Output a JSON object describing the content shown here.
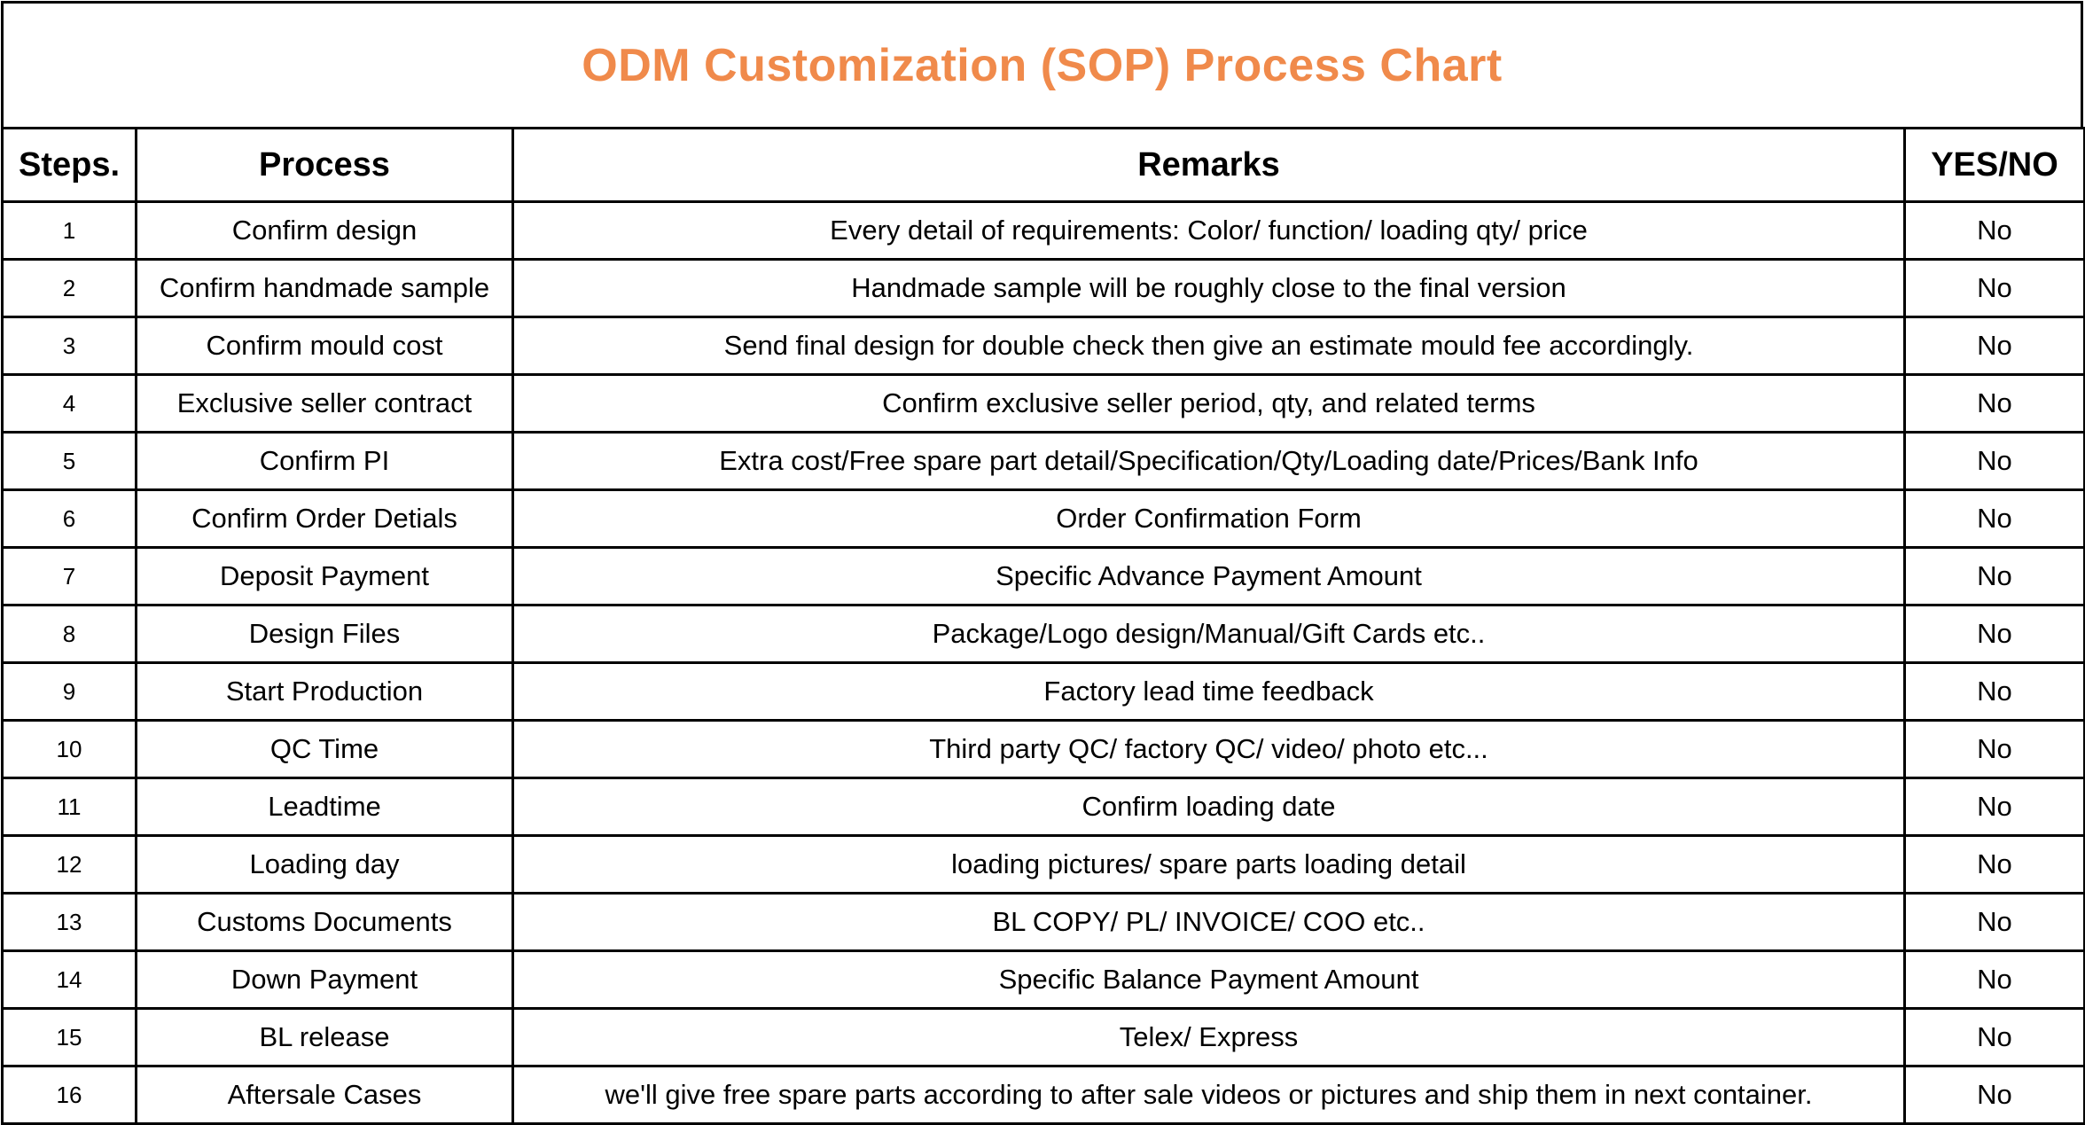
{
  "title": "ODM Customization (SOP) Process Chart",
  "accent_color": "#f08a4b",
  "headers": {
    "steps": "Steps.",
    "process": "Process",
    "remarks": "Remarks",
    "yes_no": "YES/NO"
  },
  "rows": [
    {
      "step": "1",
      "process": "Confirm design",
      "remarks": "Every detail of requirements: Color/ function/ loading qty/ price",
      "yes_no": "No"
    },
    {
      "step": "2",
      "process": "Confirm handmade sample",
      "remarks": "Handmade sample will be roughly close to the final version",
      "yes_no": "No"
    },
    {
      "step": "3",
      "process": "Confirm mould cost",
      "remarks": "Send final design for double check then give an estimate mould fee accordingly.",
      "yes_no": "No"
    },
    {
      "step": "4",
      "process": "Exclusive seller contract",
      "remarks": "Confirm exclusive seller period, qty, and related terms",
      "yes_no": "No"
    },
    {
      "step": "5",
      "process": "Confirm PI",
      "remarks": "Extra cost/Free spare part detail/Specification/Qty/Loading  date/Prices/Bank Info",
      "yes_no": "No"
    },
    {
      "step": "6",
      "process": "Confirm Order Detials",
      "remarks": "Order Confirmation Form",
      "yes_no": "No"
    },
    {
      "step": "7",
      "process": "Deposit Payment",
      "remarks": "Specific Advance Payment Amount",
      "yes_no": "No"
    },
    {
      "step": "8",
      "process": "Design Files",
      "remarks": "Package/Logo design/Manual/Gift Cards etc..",
      "yes_no": "No"
    },
    {
      "step": "9",
      "process": "Start Production",
      "remarks": "Factory lead time feedback",
      "yes_no": "No"
    },
    {
      "step": "10",
      "process": "QC Time",
      "remarks": "Third party QC/ factory QC/ video/ photo etc...",
      "yes_no": "No"
    },
    {
      "step": "11",
      "process": "Leadtime",
      "remarks": "Confirm loading date",
      "yes_no": "No"
    },
    {
      "step": "12",
      "process": "Loading day",
      "remarks": "loading pictures/ spare parts loading detail",
      "yes_no": "No"
    },
    {
      "step": "13",
      "process": "Customs Documents",
      "remarks": "BL COPY/ PL/ INVOICE/ COO etc..",
      "yes_no": "No"
    },
    {
      "step": "14",
      "process": "Down Payment",
      "remarks": "Specific Balance Payment Amount",
      "yes_no": "No"
    },
    {
      "step": "15",
      "process": "BL release",
      "remarks": "Telex/ Express",
      "yes_no": "No"
    },
    {
      "step": "16",
      "process": "Aftersale Cases",
      "remarks": "we'll give free spare parts according to after sale videos or pictures and ship them in next container.",
      "yes_no": "No"
    }
  ]
}
